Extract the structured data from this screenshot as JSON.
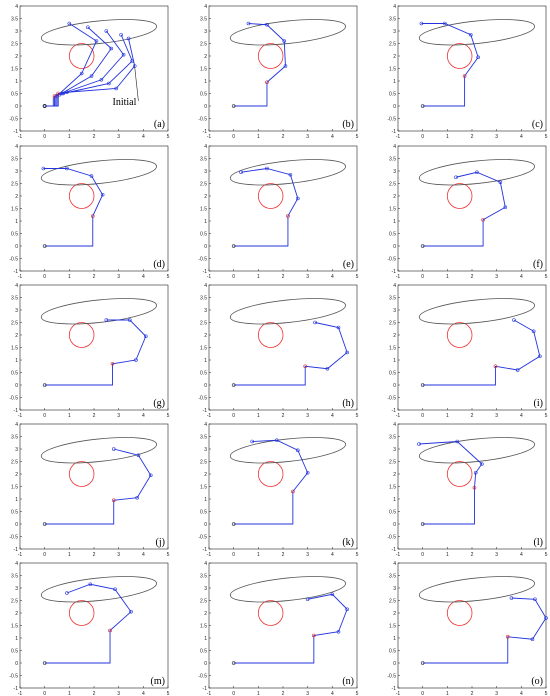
{
  "figure": {
    "annotation_text": "Initial"
  },
  "colors": {
    "robot": "#2233dd",
    "joint_start": "#dd2222",
    "obstacle": "#ee3333",
    "ellipse": "#555555",
    "axes": "#222222"
  },
  "chart_data": [
    {
      "panel": "(a)",
      "type": "line",
      "xlim": [
        -1,
        5
      ],
      "ylim": [
        -1,
        4
      ],
      "xticks": [
        "-1",
        "0",
        "1",
        "2",
        "3",
        "4",
        "5"
      ],
      "yticks": [
        "-1",
        "-0.5",
        "0",
        "0.5",
        "1",
        "1.5",
        "2",
        "2.5",
        "3",
        "3.5",
        "4"
      ],
      "obstacle_circle": {
        "cx": 1.5,
        "cy": 2.0,
        "r": 0.5
      },
      "target_ellipse": {
        "cx": 2.2,
        "cy": 2.95,
        "rx": 2.35,
        "ry": 0.45,
        "angle_deg": -6
      },
      "series": [
        {
          "x": [
            0,
            0.55,
            0.55,
            0.9,
            2.9,
            3.65,
            3.4
          ],
          "y": [
            0,
            0,
            0.5,
            0.55,
            0.7,
            1.6,
            2.7
          ]
        },
        {
          "x": [
            0,
            0.5,
            0.5,
            0.75,
            2.6,
            3.55,
            3.1
          ],
          "y": [
            0,
            0,
            0.45,
            0.5,
            0.9,
            1.8,
            2.85
          ]
        },
        {
          "x": [
            0,
            0.45,
            0.45,
            0.7,
            2.3,
            3.2,
            2.5
          ],
          "y": [
            0,
            0,
            0.45,
            0.5,
            1.05,
            2.05,
            3.0
          ]
        },
        {
          "x": [
            0,
            0.4,
            0.4,
            0.6,
            1.9,
            2.7,
            1.75
          ],
          "y": [
            0,
            0,
            0.4,
            0.45,
            1.2,
            2.3,
            3.15
          ]
        },
        {
          "x": [
            0,
            0.35,
            0.35,
            0.5,
            1.5,
            2.1,
            1.0
          ],
          "y": [
            0,
            0,
            0.35,
            0.4,
            1.3,
            2.6,
            3.3
          ]
        }
      ],
      "joint_markers": [
        {
          "x": 0.4,
          "y": 0.4
        },
        {
          "x": 0.55,
          "y": 0.5
        }
      ]
    },
    {
      "panel": "(b)",
      "type": "line",
      "xlim": [
        -1,
        5
      ],
      "ylim": [
        -1,
        4
      ],
      "xticks": [
        "-1",
        "0",
        "1",
        "2",
        "3",
        "4",
        "5"
      ],
      "yticks": [
        "-1",
        "-0.5",
        "0",
        "0.5",
        "1",
        "1.5",
        "2",
        "2.5",
        "3",
        "3.5",
        "4"
      ],
      "obstacle_circle": {
        "cx": 1.5,
        "cy": 2.0,
        "r": 0.5
      },
      "target_ellipse": {
        "cx": 2.2,
        "cy": 2.95,
        "rx": 2.35,
        "ry": 0.45,
        "angle_deg": -6
      },
      "series": [
        {
          "x": [
            0,
            1.35,
            1.35,
            2.1,
            2.05,
            1.35,
            0.6
          ],
          "y": [
            0,
            0,
            0.95,
            1.6,
            2.6,
            3.25,
            3.3
          ]
        }
      ],
      "joint_markers": [
        {
          "x": 1.35,
          "y": 0.95
        }
      ]
    },
    {
      "panel": "(c)",
      "type": "line",
      "xlim": [
        -1,
        5
      ],
      "ylim": [
        -1,
        4
      ],
      "xticks": [
        "-1",
        "0",
        "1",
        "2",
        "3",
        "4",
        "5"
      ],
      "yticks": [
        "-1",
        "-0.5",
        "0",
        "0.5",
        "1",
        "1.5",
        "2",
        "2.5",
        "3",
        "3.5",
        "4"
      ],
      "obstacle_circle": {
        "cx": 1.5,
        "cy": 2.0,
        "r": 0.5
      },
      "target_ellipse": {
        "cx": 2.2,
        "cy": 2.95,
        "rx": 2.35,
        "ry": 0.45,
        "angle_deg": -6
      },
      "series": [
        {
          "x": [
            0,
            1.7,
            1.7,
            2.25,
            1.95,
            0.9,
            -0.05
          ],
          "y": [
            0,
            0,
            1.2,
            1.95,
            2.85,
            3.3,
            3.3
          ]
        }
      ],
      "joint_markers": [
        {
          "x": 1.7,
          "y": 1.2
        }
      ]
    },
    {
      "panel": "(d)",
      "type": "line",
      "xlim": [
        -1,
        5
      ],
      "ylim": [
        -1,
        4
      ],
      "xticks": [
        "-1",
        "0",
        "1",
        "2",
        "3",
        "4",
        "5"
      ],
      "yticks": [
        "-1",
        "-0.5",
        "0",
        "0.5",
        "1",
        "1.5",
        "2",
        "2.5",
        "3",
        "3.5",
        "4"
      ],
      "obstacle_circle": {
        "cx": 1.5,
        "cy": 2.0,
        "r": 0.5
      },
      "target_ellipse": {
        "cx": 2.2,
        "cy": 2.95,
        "rx": 2.35,
        "ry": 0.45,
        "angle_deg": -6
      },
      "series": [
        {
          "x": [
            0,
            1.95,
            1.95,
            2.35,
            1.9,
            0.9,
            -0.05
          ],
          "y": [
            0,
            0,
            1.2,
            2.05,
            2.8,
            3.1,
            3.1
          ]
        }
      ],
      "joint_markers": [
        {
          "x": 1.95,
          "y": 1.2
        }
      ]
    },
    {
      "panel": "(e)",
      "type": "line",
      "xlim": [
        -1,
        5
      ],
      "ylim": [
        -1,
        4
      ],
      "xticks": [
        "-1",
        "0",
        "1",
        "2",
        "3",
        "4",
        "5"
      ],
      "yticks": [
        "-1",
        "-0.5",
        "0",
        "0.5",
        "1",
        "1.5",
        "2",
        "2.5",
        "3",
        "3.5",
        "4"
      ],
      "obstacle_circle": {
        "cx": 1.5,
        "cy": 2.0,
        "r": 0.5
      },
      "target_ellipse": {
        "cx": 2.2,
        "cy": 2.95,
        "rx": 2.35,
        "ry": 0.45,
        "angle_deg": -6
      },
      "series": [
        {
          "x": [
            0,
            2.2,
            2.2,
            2.6,
            2.3,
            1.35,
            0.3
          ],
          "y": [
            0,
            0,
            1.2,
            1.9,
            2.85,
            3.1,
            2.95
          ]
        }
      ],
      "joint_markers": [
        {
          "x": 2.2,
          "y": 1.2
        }
      ]
    },
    {
      "panel": "(f)",
      "type": "line",
      "xlim": [
        -1,
        5
      ],
      "ylim": [
        -1,
        4
      ],
      "xticks": [
        "-1",
        "0",
        "1",
        "2",
        "3",
        "4",
        "5"
      ],
      "yticks": [
        "-1",
        "-0.5",
        "0",
        "0.5",
        "1",
        "1.5",
        "2",
        "2.5",
        "3",
        "3.5",
        "4"
      ],
      "obstacle_circle": {
        "cx": 1.5,
        "cy": 2.0,
        "r": 0.5
      },
      "target_ellipse": {
        "cx": 2.2,
        "cy": 2.95,
        "rx": 2.35,
        "ry": 0.45,
        "angle_deg": -6
      },
      "series": [
        {
          "x": [
            0,
            2.45,
            2.45,
            3.35,
            3.15,
            2.2,
            1.35
          ],
          "y": [
            0,
            0,
            1.05,
            1.55,
            2.55,
            2.95,
            2.75
          ]
        }
      ],
      "joint_markers": [
        {
          "x": 2.45,
          "y": 1.05
        }
      ]
    },
    {
      "panel": "(g)",
      "type": "line",
      "xlim": [
        -1,
        5
      ],
      "ylim": [
        -1,
        4
      ],
      "xticks": [
        "-1",
        "0",
        "1",
        "2",
        "3",
        "4",
        "5"
      ],
      "yticks": [
        "-1",
        "-0.5",
        "0",
        "0.5",
        "1",
        "1.5",
        "2",
        "2.5",
        "3",
        "3.5",
        "4"
      ],
      "obstacle_circle": {
        "cx": 1.5,
        "cy": 2.0,
        "r": 0.5
      },
      "target_ellipse": {
        "cx": 2.2,
        "cy": 2.95,
        "rx": 2.35,
        "ry": 0.45,
        "angle_deg": -6
      },
      "series": [
        {
          "x": [
            0,
            2.75,
            2.75,
            3.7,
            4.1,
            3.45,
            2.5
          ],
          "y": [
            0,
            0,
            0.85,
            1.0,
            1.95,
            2.6,
            2.6
          ]
        }
      ],
      "joint_markers": [
        {
          "x": 2.75,
          "y": 0.85
        }
      ]
    },
    {
      "panel": "(h)",
      "type": "line",
      "xlim": [
        -1,
        5
      ],
      "ylim": [
        -1,
        4
      ],
      "xticks": [
        "-1",
        "0",
        "1",
        "2",
        "3",
        "4",
        "5"
      ],
      "yticks": [
        "-1",
        "-0.5",
        "0",
        "0.5",
        "1",
        "1.5",
        "2",
        "2.5",
        "3",
        "3.5",
        "4"
      ],
      "obstacle_circle": {
        "cx": 1.5,
        "cy": 2.0,
        "r": 0.5
      },
      "target_ellipse": {
        "cx": 2.2,
        "cy": 2.95,
        "rx": 2.35,
        "ry": 0.45,
        "angle_deg": -6
      },
      "series": [
        {
          "x": [
            0,
            2.9,
            2.9,
            3.8,
            4.6,
            4.25,
            3.3
          ],
          "y": [
            0,
            0,
            0.75,
            0.65,
            1.3,
            2.3,
            2.5
          ]
        }
      ],
      "joint_markers": [
        {
          "x": 2.9,
          "y": 0.75
        }
      ]
    },
    {
      "panel": "(i)",
      "type": "line",
      "xlim": [
        -1,
        5
      ],
      "ylim": [
        -1,
        4
      ],
      "xticks": [
        "-1",
        "0",
        "1",
        "2",
        "3",
        "4",
        "5"
      ],
      "yticks": [
        "-1",
        "-0.5",
        "0",
        "0.5",
        "1",
        "1.5",
        "2",
        "2.5",
        "3",
        "3.5",
        "4"
      ],
      "obstacle_circle": {
        "cx": 1.5,
        "cy": 2.0,
        "r": 0.5
      },
      "target_ellipse": {
        "cx": 2.2,
        "cy": 2.95,
        "rx": 2.35,
        "ry": 0.45,
        "angle_deg": -6
      },
      "series": [
        {
          "x": [
            0,
            2.95,
            2.95,
            3.85,
            4.75,
            4.5,
            3.7
          ],
          "y": [
            0,
            0,
            0.75,
            0.6,
            1.15,
            2.15,
            2.6
          ]
        }
      ],
      "joint_markers": [
        {
          "x": 2.95,
          "y": 0.75
        }
      ]
    },
    {
      "panel": "(j)",
      "type": "line",
      "xlim": [
        -1,
        5
      ],
      "ylim": [
        -1,
        4
      ],
      "xticks": [
        "-1",
        "0",
        "1",
        "2",
        "3",
        "4",
        "5"
      ],
      "yticks": [
        "-1",
        "-0.5",
        "0",
        "0.5",
        "1",
        "1.5",
        "2",
        "2.5",
        "3",
        "3.5",
        "4"
      ],
      "obstacle_circle": {
        "cx": 1.5,
        "cy": 2.0,
        "r": 0.5
      },
      "target_ellipse": {
        "cx": 2.2,
        "cy": 2.95,
        "rx": 2.35,
        "ry": 0.45,
        "angle_deg": -6
      },
      "series": [
        {
          "x": [
            0,
            2.8,
            2.8,
            3.75,
            4.3,
            3.8,
            2.8
          ],
          "y": [
            0,
            0,
            0.95,
            1.05,
            1.95,
            2.75,
            3.0
          ]
        }
      ],
      "joint_markers": [
        {
          "x": 2.8,
          "y": 0.95
        }
      ]
    },
    {
      "panel": "(k)",
      "type": "line",
      "xlim": [
        -1,
        5
      ],
      "ylim": [
        -1,
        4
      ],
      "xticks": [
        "-1",
        "0",
        "1",
        "2",
        "3",
        "4",
        "5"
      ],
      "yticks": [
        "-1",
        "-0.5",
        "0",
        "0.5",
        "1",
        "1.5",
        "2",
        "2.5",
        "3",
        "3.5",
        "4"
      ],
      "obstacle_circle": {
        "cx": 1.5,
        "cy": 2.0,
        "r": 0.5
      },
      "target_ellipse": {
        "cx": 2.2,
        "cy": 2.95,
        "rx": 2.35,
        "ry": 0.45,
        "angle_deg": -6
      },
      "series": [
        {
          "x": [
            0,
            2.4,
            2.4,
            3.0,
            2.6,
            1.75,
            0.75
          ],
          "y": [
            0,
            0,
            1.3,
            2.05,
            2.95,
            3.35,
            3.3
          ]
        }
      ],
      "joint_markers": [
        {
          "x": 2.4,
          "y": 1.3
        }
      ]
    },
    {
      "panel": "(l)",
      "type": "line",
      "xlim": [
        -1,
        5
      ],
      "ylim": [
        -1,
        4
      ],
      "xticks": [
        "-1",
        "0",
        "1",
        "2",
        "3",
        "4",
        "5"
      ],
      "yticks": [
        "-1",
        "-0.5",
        "0",
        "0.5",
        "1",
        "1.5",
        "2",
        "2.5",
        "3",
        "3.5",
        "4"
      ],
      "obstacle_circle": {
        "cx": 1.5,
        "cy": 2.0,
        "r": 0.5
      },
      "target_ellipse": {
        "cx": 2.2,
        "cy": 2.95,
        "rx": 2.35,
        "ry": 0.45,
        "angle_deg": -6
      },
      "series": [
        {
          "x": [
            0,
            2.1,
            2.1,
            2.15,
            2.4,
            1.4,
            -0.15
          ],
          "y": [
            0,
            0,
            1.45,
            2.05,
            2.4,
            3.3,
            3.2
          ]
        }
      ],
      "joint_markers": [
        {
          "x": 2.1,
          "y": 1.45
        }
      ]
    },
    {
      "panel": "(m)",
      "type": "line",
      "xlim": [
        -1,
        5
      ],
      "ylim": [
        -1,
        4
      ],
      "xticks": [
        "-1",
        "0",
        "1",
        "2",
        "3",
        "4",
        "5"
      ],
      "yticks": [
        "-1",
        "-0.5",
        "0",
        "0.5",
        "1",
        "1.5",
        "2",
        "2.5",
        "3",
        "3.5",
        "4"
      ],
      "obstacle_circle": {
        "cx": 1.5,
        "cy": 2.0,
        "r": 0.5
      },
      "target_ellipse": {
        "cx": 2.2,
        "cy": 2.95,
        "rx": 2.35,
        "ry": 0.45,
        "angle_deg": -6
      },
      "series": [
        {
          "x": [
            0,
            2.65,
            2.65,
            3.5,
            2.85,
            1.85,
            0.9
          ],
          "y": [
            0,
            0,
            1.3,
            2.05,
            2.95,
            3.15,
            2.8
          ]
        }
      ],
      "joint_markers": [
        {
          "x": 2.65,
          "y": 1.3
        }
      ]
    },
    {
      "panel": "(n)",
      "type": "line",
      "xlim": [
        -1,
        5
      ],
      "ylim": [
        -1,
        4
      ],
      "xticks": [
        "-1",
        "0",
        "1",
        "2",
        "3",
        "4",
        "5"
      ],
      "yticks": [
        "-1",
        "-0.5",
        "0",
        "0.5",
        "1",
        "1.5",
        "2",
        "2.5",
        "3",
        "3.5",
        "4"
      ],
      "obstacle_circle": {
        "cx": 1.5,
        "cy": 2.0,
        "r": 0.5
      },
      "target_ellipse": {
        "cx": 2.2,
        "cy": 2.95,
        "rx": 2.35,
        "ry": 0.45,
        "angle_deg": -6
      },
      "series": [
        {
          "x": [
            0,
            3.25,
            3.25,
            4.25,
            4.6,
            4.0,
            3.0
          ],
          "y": [
            0,
            0,
            1.1,
            1.25,
            2.15,
            2.75,
            2.55
          ]
        }
      ],
      "joint_markers": [
        {
          "x": 3.25,
          "y": 1.1
        }
      ]
    },
    {
      "panel": "(o)",
      "type": "line",
      "xlim": [
        -1,
        5
      ],
      "ylim": [
        -1,
        4
      ],
      "xticks": [
        "-1",
        "0",
        "1",
        "2",
        "3",
        "4",
        "5"
      ],
      "yticks": [
        "-1",
        "-0.5",
        "0",
        "0.5",
        "1",
        "1.5",
        "2",
        "2.5",
        "3",
        "3.5",
        "4"
      ],
      "obstacle_circle": {
        "cx": 1.5,
        "cy": 2.0,
        "r": 0.5
      },
      "target_ellipse": {
        "cx": 2.2,
        "cy": 2.95,
        "rx": 2.35,
        "ry": 0.45,
        "angle_deg": -6
      },
      "series": [
        {
          "x": [
            0,
            3.45,
            3.45,
            4.45,
            5.0,
            4.55,
            3.6
          ],
          "y": [
            0,
            0,
            1.05,
            0.95,
            1.8,
            2.55,
            2.6
          ]
        }
      ],
      "joint_markers": [
        {
          "x": 3.45,
          "y": 1.05
        }
      ]
    }
  ]
}
